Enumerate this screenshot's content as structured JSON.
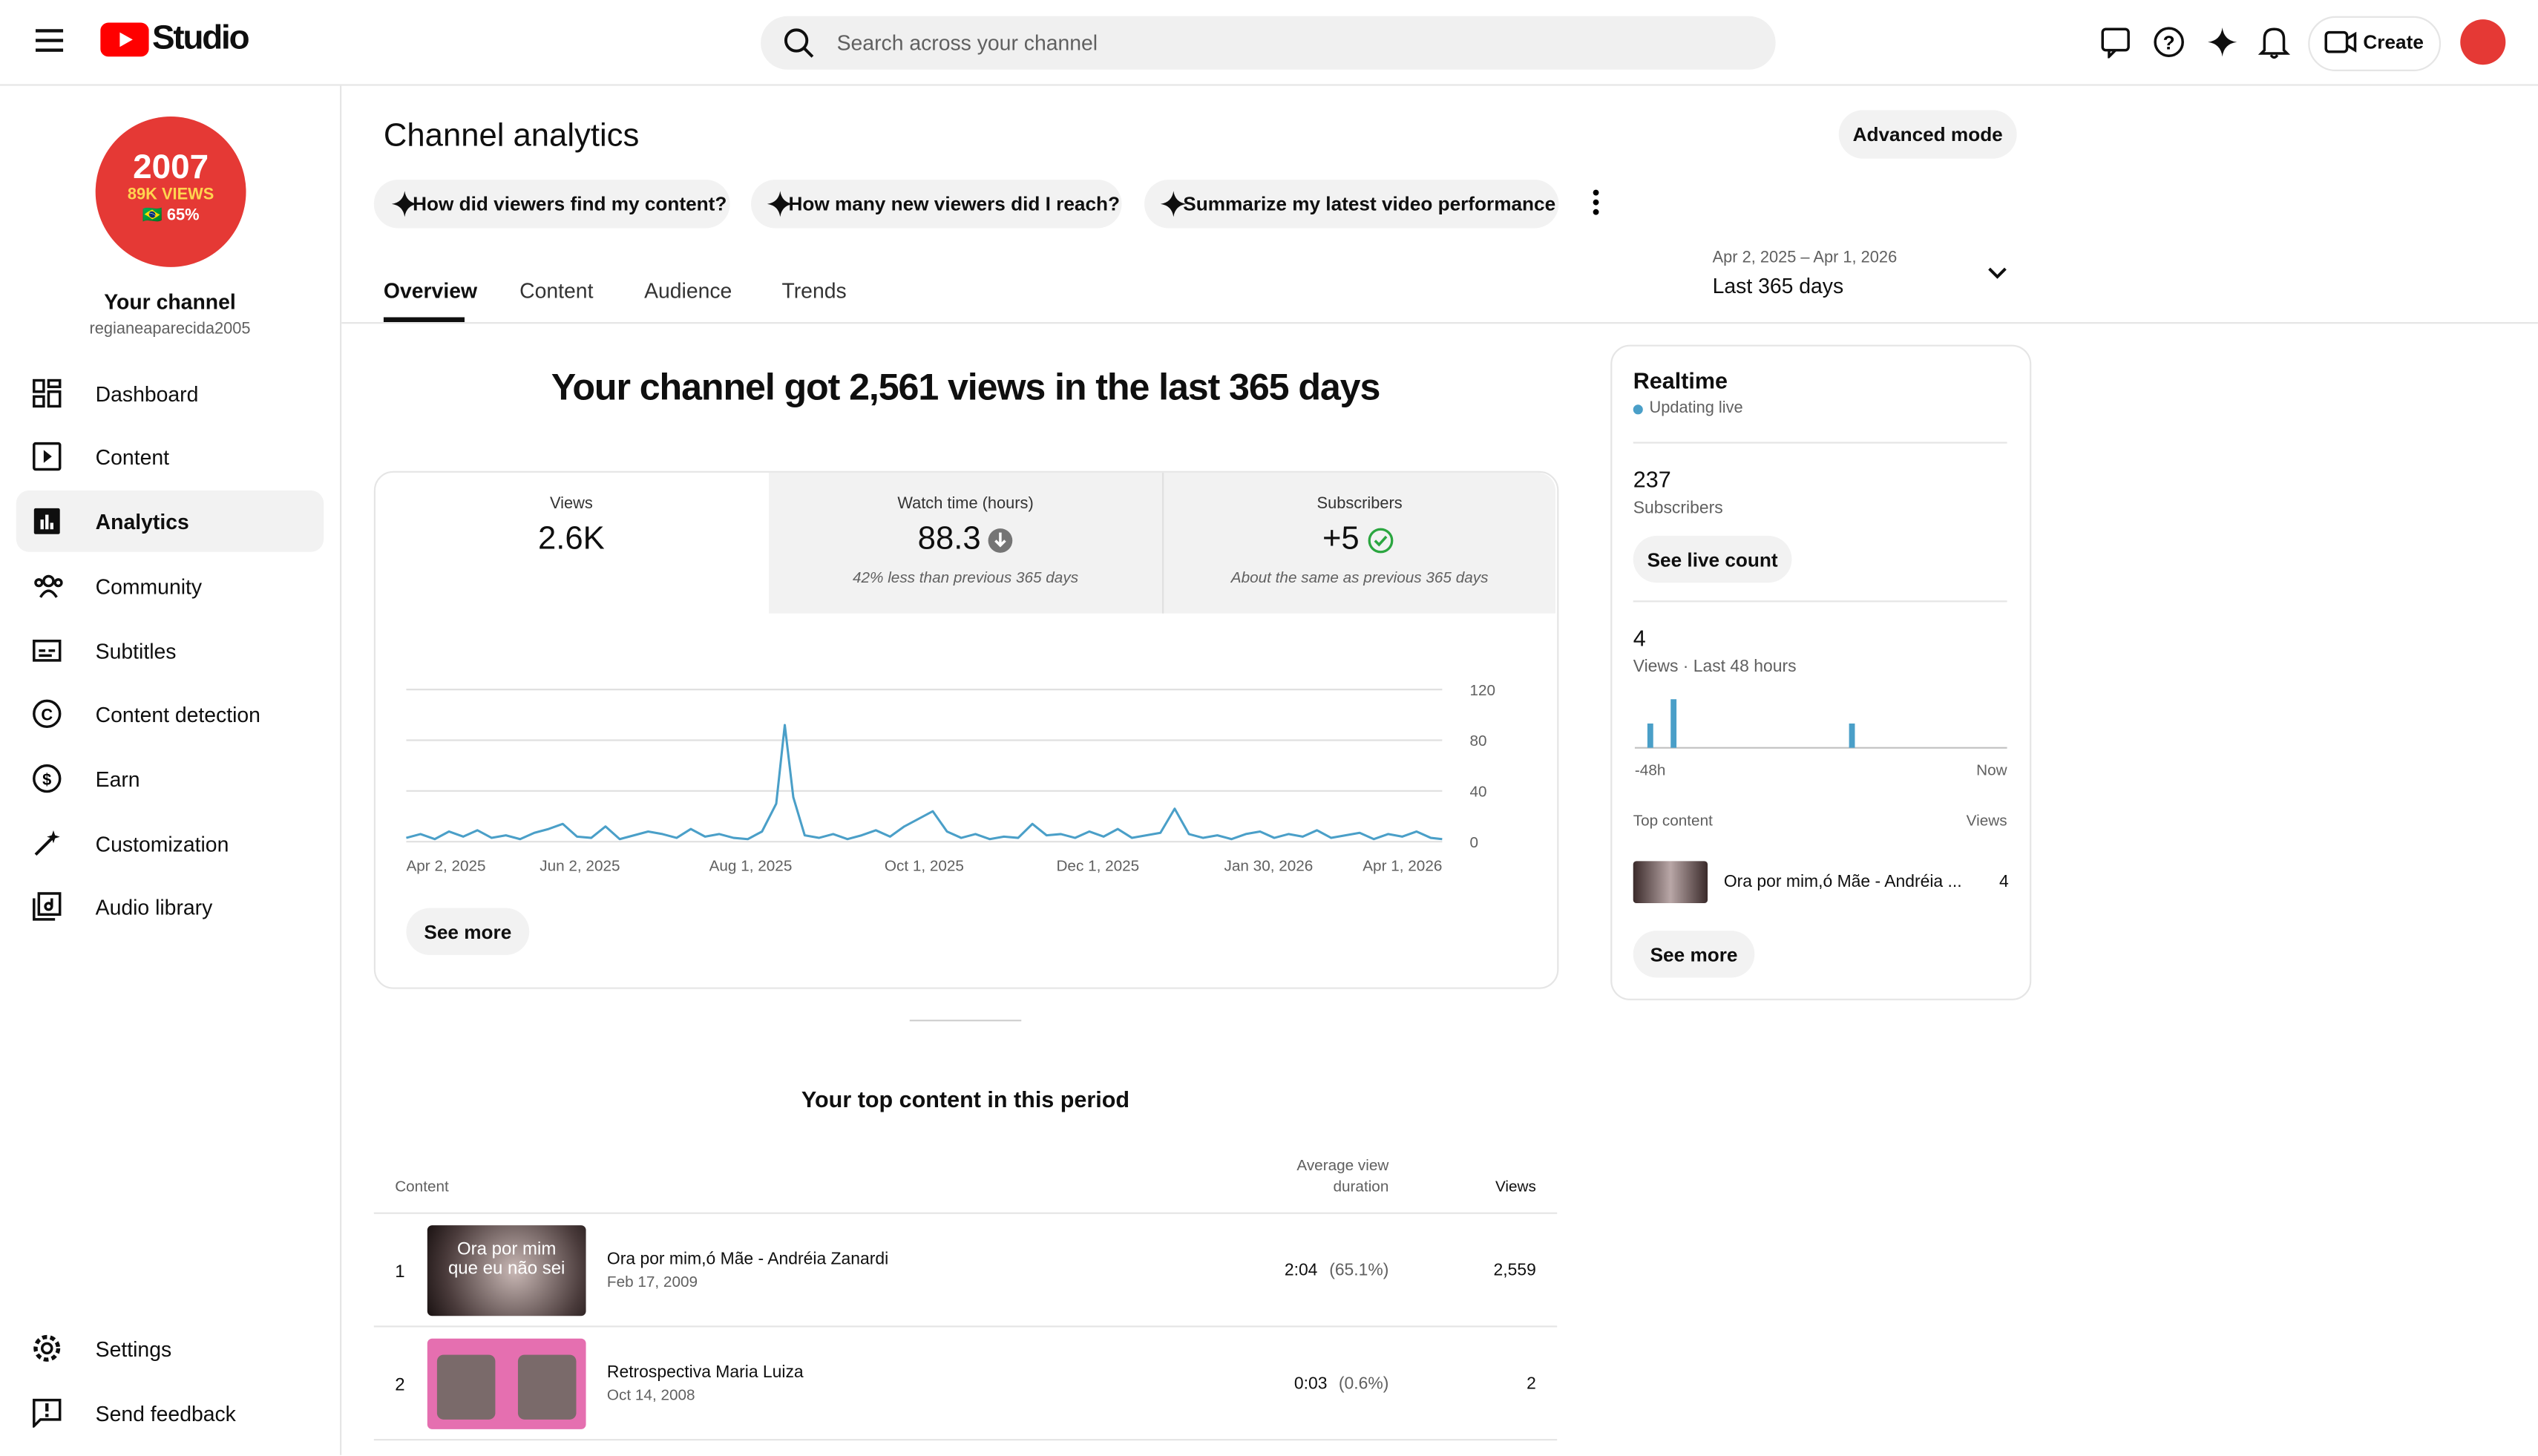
{
  "header": {
    "logo": "Studio",
    "search_placeholder": "Search across your channel",
    "create": "Create"
  },
  "sidebar": {
    "avatar": {
      "line1": "2007",
      "line2": "89K VIEWS",
      "line3": "🇧🇷 65%"
    },
    "channel_title": "Your channel",
    "handle": "regianeaparecida2005",
    "nav": [
      "Dashboard",
      "Content",
      "Analytics",
      "Community",
      "Subtitles",
      "Content detection",
      "Earn",
      "Customization",
      "Audio library"
    ],
    "bottom": [
      "Settings",
      "Send feedback"
    ]
  },
  "page": {
    "title": "Channel analytics",
    "advanced": "Advanced mode",
    "prompts": [
      "How did viewers find my content?",
      "How many new viewers did I reach?",
      "Summarize my latest video performance"
    ],
    "tabs": [
      "Overview",
      "Content",
      "Audience",
      "Trends"
    ],
    "date_range": "Apr 2, 2025 – Apr 1, 2026",
    "period": "Last 365 days",
    "headline": "Your channel got 2,561 views in the last 365 days",
    "metrics": [
      {
        "label": "Views",
        "value": "2.6K"
      },
      {
        "label": "Watch time (hours)",
        "value": "88.3",
        "note": "42% less than previous 365 days"
      },
      {
        "label": "Subscribers",
        "value": "+5",
        "note": "About the same as previous 365 days"
      }
    ],
    "see_more": "See more"
  },
  "chart_data": [
    {
      "type": "line",
      "color": "#4a9fc8",
      "grid": true,
      "x": [
        0,
        5,
        10,
        15,
        20,
        25,
        30,
        35,
        40,
        45,
        50,
        55,
        60,
        65,
        70,
        75,
        80,
        85,
        90,
        95,
        100,
        105,
        110,
        115,
        120,
        125,
        130,
        133,
        136,
        140,
        145,
        150,
        155,
        160,
        165,
        170,
        175,
        180,
        185,
        190,
        195,
        200,
        205,
        210,
        215,
        220,
        225,
        230,
        235,
        240,
        245,
        250,
        255,
        260,
        265,
        270,
        275,
        280,
        285,
        290,
        295,
        300,
        305,
        310,
        315,
        320,
        325,
        330,
        335,
        340,
        345,
        350,
        355,
        360,
        364
      ],
      "values": [
        3,
        6,
        2,
        8,
        4,
        9,
        3,
        5,
        2,
        7,
        10,
        14,
        4,
        3,
        12,
        2,
        5,
        8,
        6,
        3,
        10,
        4,
        6,
        3,
        2,
        8,
        30,
        92,
        35,
        5,
        3,
        6,
        2,
        5,
        9,
        4,
        12,
        18,
        24,
        8,
        3,
        6,
        2,
        4,
        3,
        14,
        5,
        6,
        3,
        8,
        4,
        10,
        3,
        5,
        7,
        26,
        6,
        3,
        5,
        2,
        6,
        8,
        3,
        6,
        4,
        9,
        3,
        5,
        7,
        2,
        6,
        4,
        8,
        3,
        2
      ],
      "xlim": [
        0,
        364
      ],
      "xticks": [
        {
          "value": 0,
          "label": "Apr 2, 2025"
        },
        {
          "value": 61,
          "label": "Jun 2, 2025"
        },
        {
          "value": 121,
          "label": "Aug 1, 2025"
        },
        {
          "value": 182,
          "label": "Oct 1, 2025"
        },
        {
          "value": 243,
          "label": "Dec 1, 2025"
        },
        {
          "value": 303,
          "label": "Jan 30, 2026"
        },
        {
          "value": 364,
          "label": "Apr 1, 2026"
        }
      ],
      "ylim": [
        0,
        120
      ],
      "yticks": [
        0,
        40,
        80,
        120
      ]
    },
    {
      "type": "bar",
      "color": "#4a9fc8",
      "x": [
        -46,
        -43,
        -20
      ],
      "values": [
        1,
        2,
        1
      ],
      "xlim": [
        -48,
        0
      ],
      "xticks": [
        {
          "value": -48,
          "label": "-48h"
        },
        {
          "value": 0,
          "label": "Now"
        }
      ],
      "ylim": [
        0,
        2
      ]
    }
  ],
  "realtime": {
    "title": "Realtime",
    "status": "Updating live",
    "subscribers": "237",
    "subscribers_label": "Subscribers",
    "see_live": "See live count",
    "views": "4",
    "views_label": "Views · Last 48 hours",
    "top_content": "Top content",
    "views_header": "Views",
    "top_item": {
      "title": "Ora por mim,ó Mãe - Andréia ...",
      "views": "4"
    },
    "see_more": "See more"
  },
  "top_content": {
    "title": "Your top content in this period",
    "headers": [
      "Content",
      "Average view duration",
      "Views"
    ],
    "rows": [
      {
        "rank": "1",
        "thumb_text": "Ora por mim que eu não sei",
        "title": "Ora por mim,ó Mãe - Andréia Zanardi",
        "date": "Feb 17, 2009",
        "duration": "2:04",
        "percent": "(65.1%)",
        "views": "2,559"
      },
      {
        "rank": "2",
        "title": "Retrospectiva Maria Luiza",
        "date": "Oct 14, 2008",
        "duration": "0:03",
        "percent": "(0.6%)",
        "views": "2"
      }
    ]
  }
}
